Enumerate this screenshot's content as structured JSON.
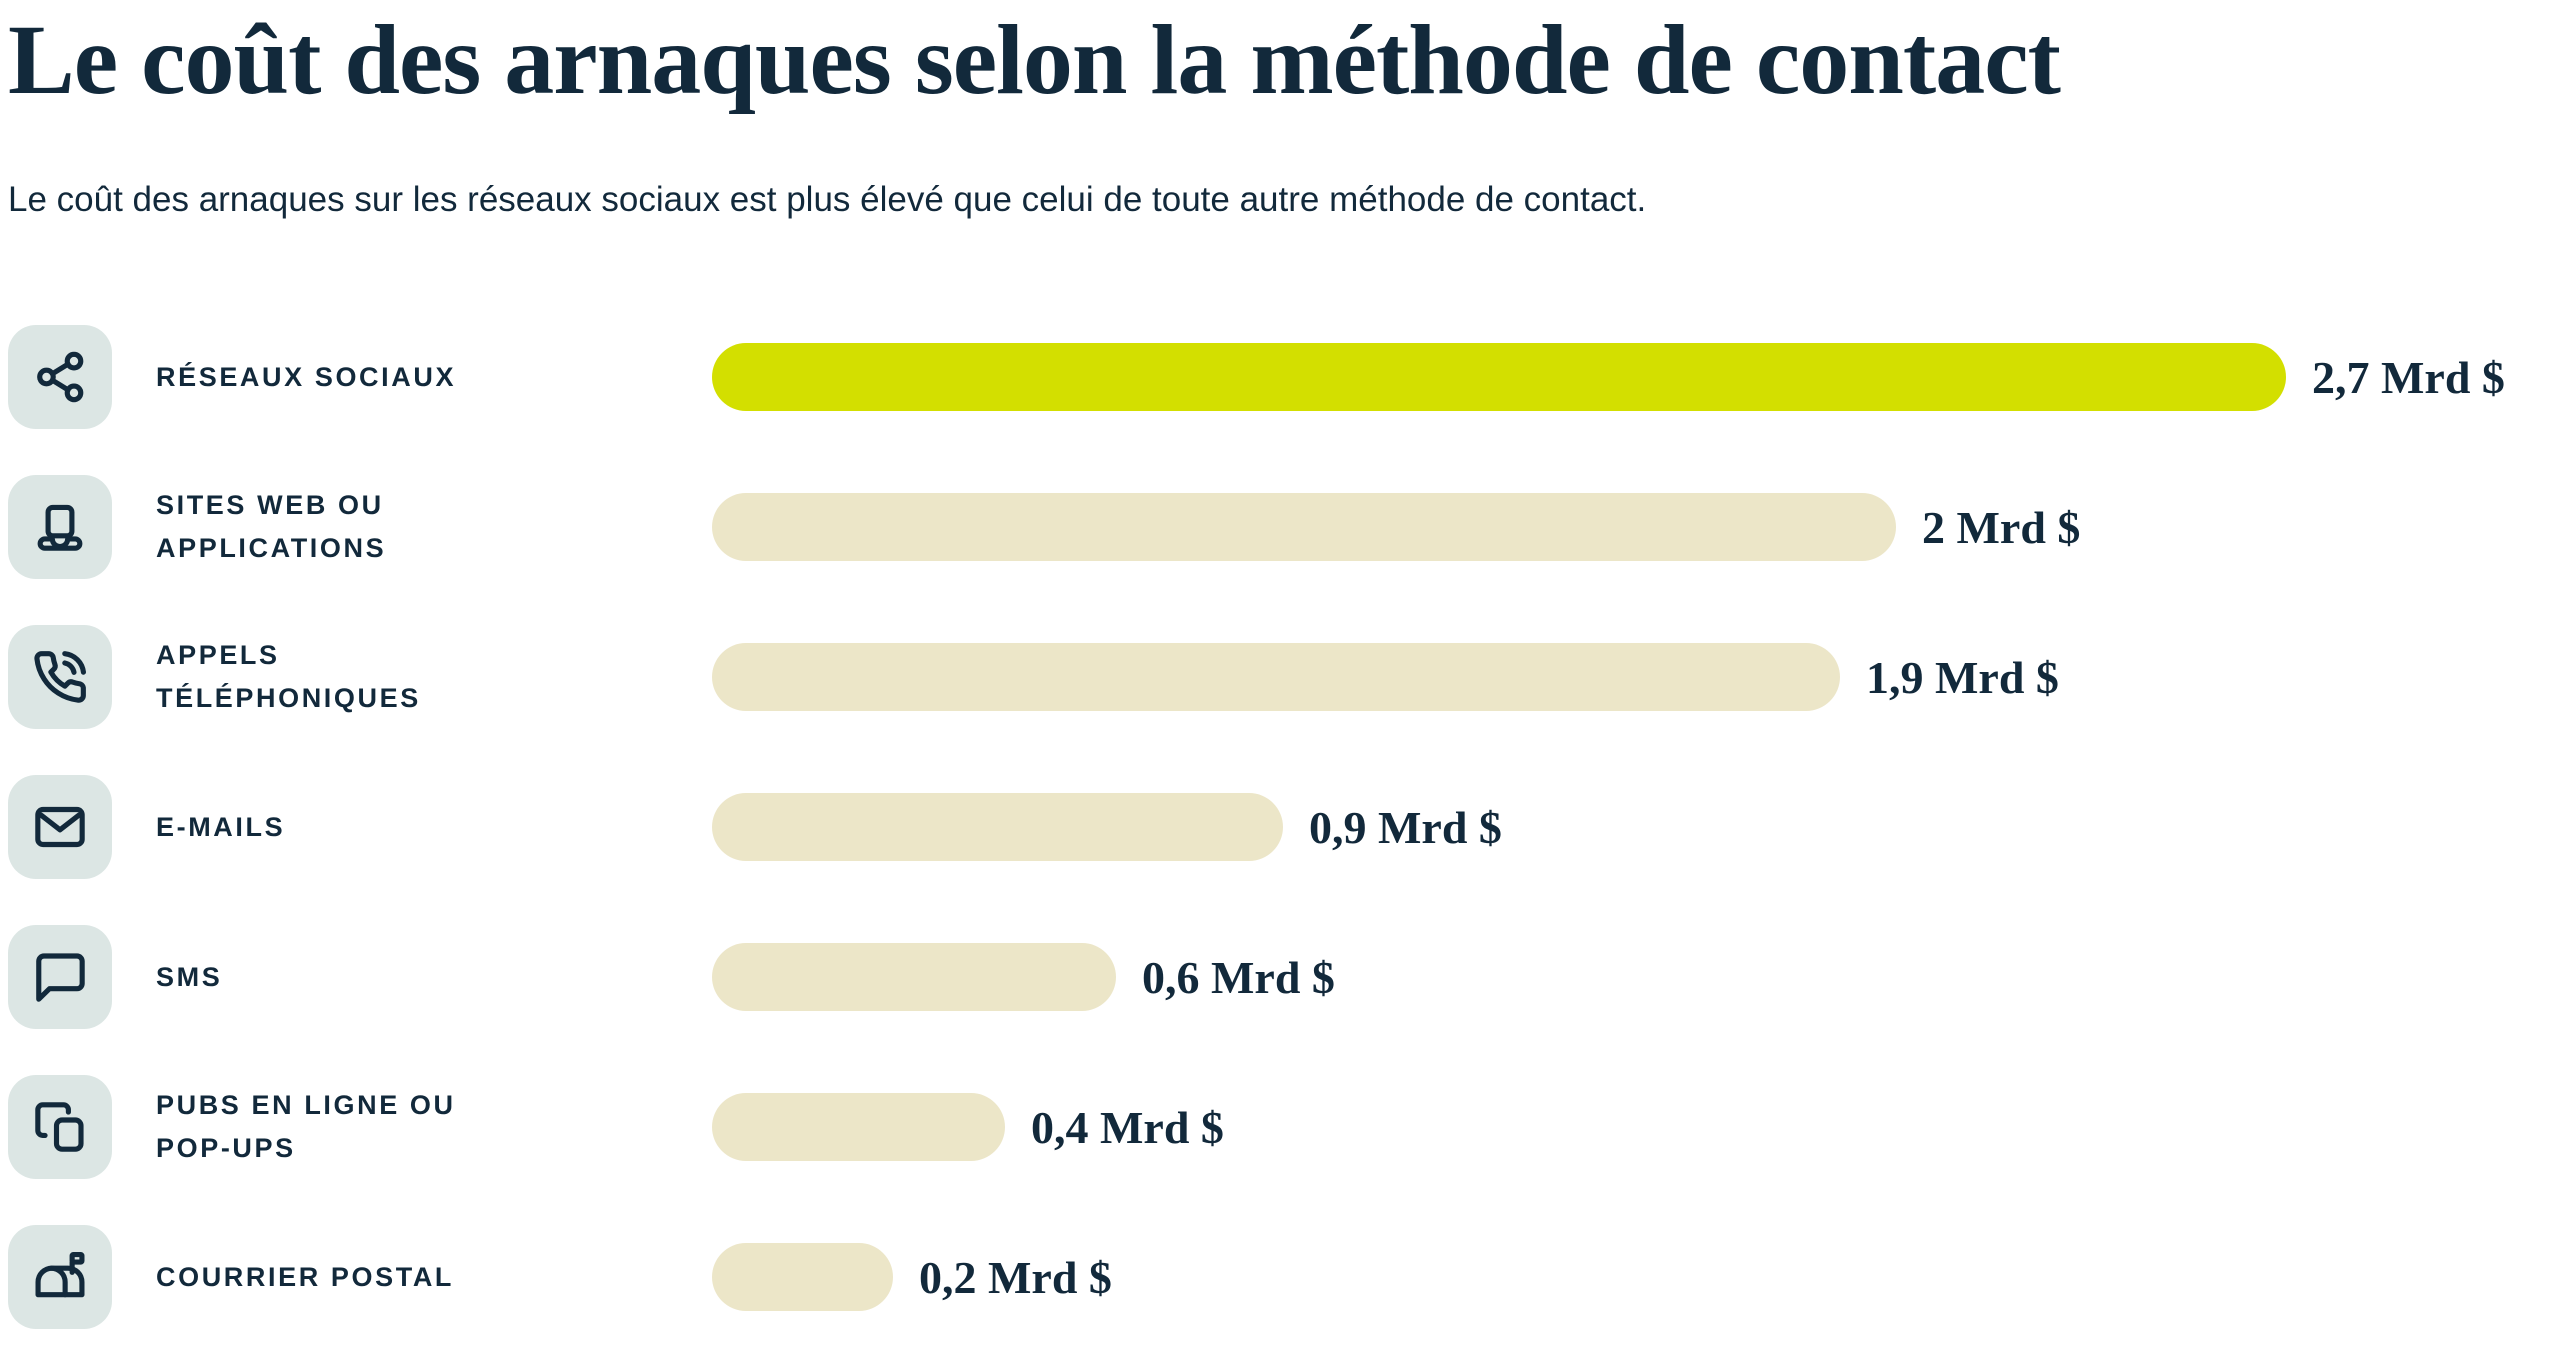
{
  "header": {
    "title": "Le coût des arnaques selon la méthode de contact",
    "subtitle": "Le coût des arnaques sur les réseaux sociaux est plus élevé que celui de toute autre méthode de contact."
  },
  "colors": {
    "navy": "#12293b",
    "highlight_bar": "#d3df00",
    "bar": "#ece6c8",
    "icon_box": "#dce6e4"
  },
  "chart_data": {
    "type": "bar",
    "orientation": "horizontal",
    "unit": "Mrd $",
    "xlim": [
      0,
      2.7
    ],
    "grid": false,
    "legend": false,
    "highlighted_index": 0,
    "categories": [
      "RÉSEAUX SOCIAUX",
      "SITES WEB OU\nAPPLICATIONS",
      "APPELS\nTÉLÉPHONIQUES",
      "E-MAILS",
      "SMS",
      "PUBS EN LIGNE OU\nPOP-UPS",
      "COURRIER POSTAL"
    ],
    "values": [
      2.7,
      2,
      1.9,
      0.9,
      0.6,
      0.4,
      0.2
    ],
    "value_labels": [
      "2,7 Mrd $",
      "2 Mrd $",
      "1,9 Mrd $",
      "0,9 Mrd $",
      "0,6 Mrd $",
      "0,4 Mrd $",
      "0,2 Mrd $"
    ],
    "icons": [
      "share-icon",
      "laptop-icon",
      "phone-call-icon",
      "mail-icon",
      "message-bubble-icon",
      "popup-windows-icon",
      "mailbox-icon"
    ]
  }
}
